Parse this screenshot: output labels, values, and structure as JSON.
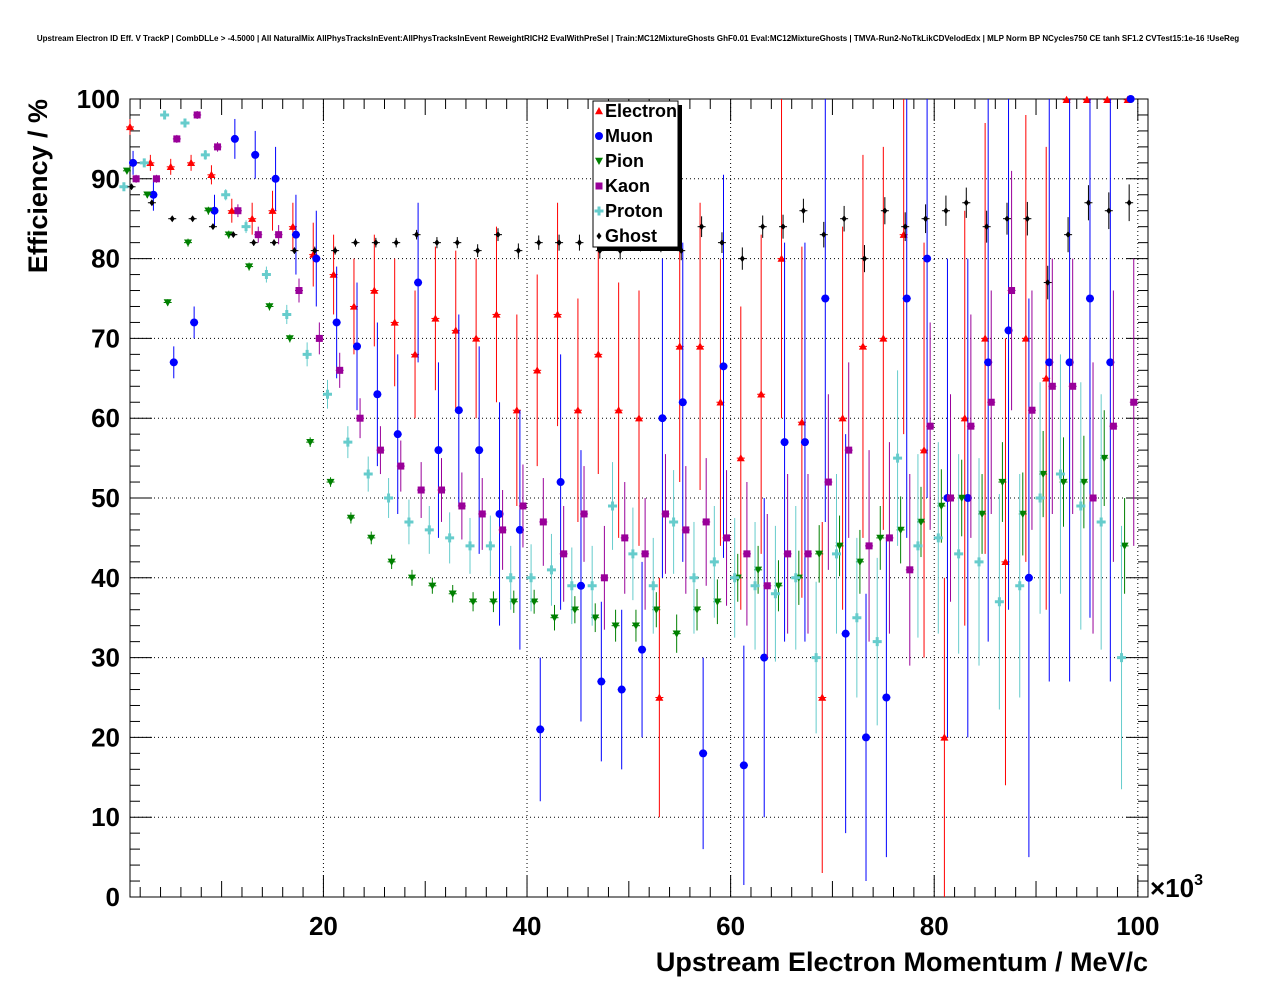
{
  "chart_data": {
    "type": "scatter",
    "title": "Upstream Electron ID Eff. V TrackP | CombDLLe > -4.5000 | All NaturalMix AllPhysTracksInEvent:AllPhysTracksInEvent ReweightRICH2 EvalWithPreSel | Train:MC12MixtureGhosts GhF0.01 Eval:MC12MixtureGhosts | TMVA-Run2-NoTkLikCDVelodEdx | MLP Norm BP NCycles750 CE tanh SF1.2 CVTest15:1e-16 !UseReg",
    "xlabel": "Upstream Electron Momentum / MeV/c",
    "ylabel": "Efficiency / %",
    "x_multiplier_label": "×10",
    "x_multiplier_exp": "3",
    "xlim": [
      1,
      101
    ],
    "ylim": [
      0,
      100
    ],
    "x_ticks": [
      20,
      40,
      60,
      80,
      100
    ],
    "y_ticks": [
      0,
      10,
      20,
      30,
      40,
      50,
      60,
      70,
      80,
      90,
      100
    ],
    "grid": true,
    "legend_position": "top-center",
    "series": [
      {
        "name": "Electron",
        "color": "#ff0000",
        "marker": "triangle-up",
        "x": [
          1,
          3,
          5,
          7,
          9,
          11,
          13,
          15,
          17,
          19,
          21,
          23,
          25,
          27,
          29,
          31,
          33,
          35,
          37,
          39,
          41,
          43,
          45,
          47,
          49,
          51,
          53,
          55,
          57,
          59,
          61,
          63,
          65,
          67,
          69,
          71,
          73,
          75,
          77,
          79,
          81,
          83,
          85,
          87,
          89,
          91,
          93,
          95,
          97,
          99
        ],
        "y": [
          96.5,
          92,
          91.5,
          92,
          90.5,
          86,
          85,
          86,
          84,
          80.5,
          78,
          74,
          76,
          72,
          68,
          72.5,
          71,
          70,
          73,
          61,
          66,
          73,
          61,
          68,
          61,
          60,
          25,
          69,
          69,
          62,
          55,
          63,
          80,
          59.5,
          25,
          60,
          69,
          70,
          83,
          56,
          20,
          60,
          70,
          42,
          70,
          65,
          99.9,
          99.9,
          99.9,
          99.9
        ],
        "err": [
          1,
          1,
          1,
          1,
          1.2,
          1.5,
          2,
          2.5,
          3,
          4,
          5,
          6,
          7,
          8,
          8,
          9,
          10,
          10,
          11,
          12,
          12,
          14,
          14,
          15,
          16,
          16,
          15,
          17,
          18,
          18,
          19,
          20,
          20,
          22,
          22,
          24,
          24,
          24,
          25,
          26,
          20,
          26,
          27,
          28,
          28,
          29,
          0,
          0,
          0,
          0
        ]
      },
      {
        "name": "Muon",
        "color": "#0000ff",
        "marker": "circle",
        "x": [
          1,
          3,
          5,
          7,
          9,
          11,
          13,
          15,
          17,
          19,
          21,
          23,
          25,
          27,
          29,
          31,
          33,
          35,
          37,
          39,
          41,
          43,
          45,
          47,
          49,
          51,
          53,
          55,
          57,
          59,
          61,
          63,
          65,
          67,
          69,
          71,
          73,
          75,
          77,
          79,
          81,
          83,
          85,
          87,
          89,
          91,
          93,
          95,
          97,
          99
        ],
        "y": [
          92,
          88,
          67,
          72,
          86,
          95,
          93,
          90,
          83,
          80,
          72,
          69,
          63,
          58,
          77,
          56,
          61,
          56,
          48,
          46,
          21,
          52,
          39,
          27,
          26,
          31,
          60,
          62,
          18,
          66.5,
          16.5,
          30,
          57,
          57,
          75,
          33,
          20,
          25,
          75,
          80,
          50,
          50,
          67,
          71,
          40,
          67,
          67,
          75,
          67,
          100
        ],
        "err": [
          1.5,
          2,
          2,
          2,
          2,
          2.5,
          3,
          4,
          5,
          6,
          7,
          8,
          9,
          10,
          10,
          11,
          12,
          13,
          14,
          15,
          9,
          16,
          17,
          10,
          10,
          11,
          20,
          20,
          12,
          24,
          15,
          20,
          25,
          25,
          28,
          25,
          18,
          20,
          30,
          30,
          30,
          30,
          35,
          35,
          35,
          40,
          40,
          40,
          40,
          0
        ]
      },
      {
        "name": "Pion",
        "color": "#008000",
        "marker": "triangle-down",
        "x": [
          1,
          3,
          5,
          7,
          9,
          11,
          13,
          15,
          17,
          19,
          21,
          23,
          25,
          27,
          29,
          31,
          33,
          35,
          37,
          39,
          41,
          43,
          45,
          47,
          49,
          51,
          53,
          55,
          57,
          59,
          61,
          63,
          65,
          67,
          69,
          71,
          73,
          75,
          77,
          79,
          81,
          83,
          85,
          87,
          89,
          91,
          93,
          95,
          97,
          99
        ],
        "y": [
          91,
          88,
          74.5,
          82,
          86,
          83,
          79,
          74,
          70,
          57,
          52,
          47.5,
          45,
          42,
          40,
          39,
          38,
          37,
          37,
          37,
          37,
          35,
          36,
          35,
          34,
          34,
          36,
          33,
          36,
          37,
          40,
          41,
          39,
          40,
          43,
          44,
          42,
          45,
          46,
          47,
          49,
          50,
          48,
          52,
          48,
          53,
          52,
          52,
          55,
          44
        ],
        "err": [
          0.3,
          0.4,
          0.4,
          0.5,
          0.5,
          0.5,
          0.5,
          0.5,
          0.5,
          0.6,
          0.6,
          0.7,
          0.8,
          0.9,
          1,
          1,
          1.1,
          1.2,
          1.3,
          1.4,
          1.5,
          1.6,
          1.7,
          1.8,
          2,
          2,
          2.2,
          2.4,
          2.6,
          2.8,
          3,
          3,
          3.2,
          3.4,
          3.6,
          3.8,
          4,
          4,
          4.2,
          4.4,
          4.6,
          4.8,
          5,
          5,
          5.2,
          5.4,
          5.6,
          5.8,
          6,
          6
        ]
      },
      {
        "name": "Kaon",
        "color": "#990099",
        "marker": "square",
        "x": [
          1,
          3,
          5,
          7,
          9,
          11,
          13,
          15,
          17,
          19,
          21,
          23,
          25,
          27,
          29,
          31,
          33,
          35,
          37,
          39,
          41,
          43,
          45,
          47,
          49,
          51,
          53,
          55,
          57,
          59,
          61,
          63,
          65,
          67,
          69,
          71,
          73,
          75,
          77,
          79,
          81,
          83,
          85,
          87,
          89,
          91,
          93,
          95,
          97,
          99
        ],
        "y": [
          90,
          90,
          95,
          98,
          94,
          86,
          83,
          83,
          76,
          70,
          66,
          60,
          56,
          54,
          51,
          51,
          49,
          48,
          46,
          49,
          47,
          43,
          48,
          40,
          45,
          43,
          48,
          46,
          47,
          45,
          43,
          39,
          43,
          43,
          52,
          56,
          44,
          45,
          41,
          59,
          50,
          59,
          62,
          76,
          61,
          64,
          64,
          50,
          59,
          62
        ],
        "err": [
          0.5,
          0.5,
          0.5,
          0.5,
          0.6,
          0.8,
          1,
          1.2,
          1.5,
          2,
          2.2,
          2.5,
          3,
          3.2,
          3.5,
          4,
          4.2,
          4.5,
          5,
          5.2,
          5.5,
          6,
          6,
          6.5,
          7,
          7,
          7.5,
          8,
          8,
          8.5,
          9,
          9,
          10,
          10,
          11,
          11,
          12,
          12,
          12,
          13,
          13,
          14,
          14,
          15,
          15,
          16,
          16,
          17,
          17,
          18
        ]
      },
      {
        "name": "Proton",
        "color": "#66cccc",
        "marker": "cross",
        "x": [
          1,
          3,
          5,
          7,
          9,
          11,
          13,
          15,
          17,
          19,
          21,
          23,
          25,
          27,
          29,
          31,
          33,
          35,
          37,
          39,
          41,
          43,
          45,
          47,
          49,
          51,
          53,
          55,
          57,
          59,
          61,
          63,
          65,
          67,
          69,
          71,
          73,
          75,
          77,
          79,
          81,
          83,
          85,
          87,
          89,
          91,
          93,
          95,
          97,
          99
        ],
        "y": [
          89,
          92,
          98,
          97,
          93,
          88,
          84,
          78,
          73,
          68,
          63,
          57,
          53,
          50,
          47,
          46,
          45,
          44,
          44,
          40,
          40,
          41,
          39,
          39,
          49,
          43,
          39,
          47,
          40,
          42,
          40,
          39,
          38,
          40,
          30,
          43,
          35,
          32,
          55,
          44,
          45,
          43,
          42,
          37,
          39,
          50,
          53,
          49,
          47,
          30
        ],
        "err": [
          0.5,
          0.5,
          0.5,
          0.5,
          0.6,
          0.7,
          0.8,
          1,
          1.2,
          1.5,
          1.8,
          2,
          2.2,
          2.5,
          2.8,
          3,
          3.2,
          3.5,
          3.8,
          4,
          4.2,
          4.5,
          4.8,
          5,
          5.5,
          5.8,
          6,
          6.5,
          7,
          7,
          7.5,
          8,
          8.5,
          9,
          9.5,
          10,
          10,
          10.5,
          11,
          11.5,
          12,
          12.5,
          13,
          13.5,
          14,
          14.5,
          15,
          15.5,
          16,
          16.5
        ]
      },
      {
        "name": "Ghost",
        "color": "#000000",
        "marker": "diamond",
        "x": [
          1,
          3,
          5,
          7,
          9,
          11,
          13,
          15,
          17,
          19,
          21,
          23,
          25,
          27,
          29,
          31,
          33,
          35,
          37,
          39,
          41,
          43,
          45,
          47,
          49,
          51,
          53,
          55,
          57,
          59,
          61,
          63,
          65,
          67,
          69,
          71,
          73,
          75,
          77,
          79,
          81,
          83,
          85,
          87,
          89,
          91,
          93,
          95,
          97,
          99
        ],
        "y": [
          89,
          87,
          85,
          85,
          84,
          83,
          82,
          82,
          81,
          81,
          81,
          82,
          82,
          82,
          83,
          82,
          82,
          81,
          83,
          81,
          82,
          82,
          82,
          81,
          81,
          82,
          82,
          81,
          84,
          82,
          80,
          84,
          84,
          86,
          83,
          85,
          80,
          86,
          84,
          85,
          86,
          87,
          84,
          85,
          85,
          77,
          83,
          87,
          86,
          87
        ],
        "err": [
          0.3,
          0.3,
          0.3,
          0.3,
          0.3,
          0.3,
          0.4,
          0.4,
          0.4,
          0.5,
          0.5,
          0.5,
          0.6,
          0.6,
          0.6,
          0.7,
          0.7,
          0.8,
          0.8,
          0.9,
          0.9,
          1,
          1,
          1,
          1.1,
          1.1,
          1.2,
          1.2,
          1.3,
          1.3,
          1.4,
          1.4,
          1.5,
          1.5,
          1.6,
          1.6,
          1.7,
          1.7,
          1.8,
          1.8,
          1.9,
          1.9,
          2,
          2,
          2.1,
          2.1,
          2.2,
          2.2,
          2.3,
          2.3
        ]
      }
    ]
  }
}
